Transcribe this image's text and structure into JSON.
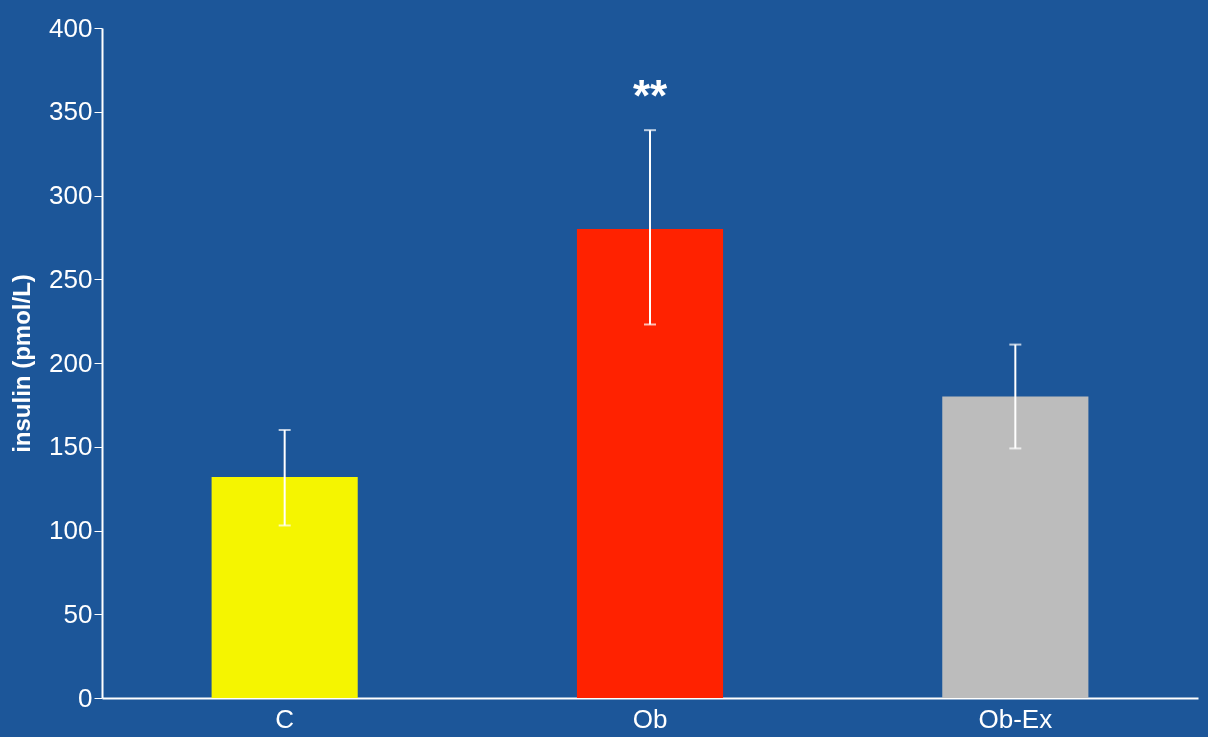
{
  "chart_data": {
    "type": "bar",
    "ylabel": "insulin (pmol/L)",
    "categories": [
      "C",
      "Ob",
      "Ob-Ex"
    ],
    "values": [
      132,
      280,
      180
    ],
    "colors": [
      "#f5f500",
      "#ff2200",
      "#bcbcbc"
    ],
    "errors": [
      [
        103,
        160
      ],
      [
        223,
        339
      ],
      [
        149,
        211
      ]
    ],
    "ylim": [
      0,
      400
    ],
    "yticks": [
      0,
      50,
      100,
      150,
      200,
      250,
      300,
      350,
      400
    ],
    "grid": false,
    "annotations": [
      {
        "text": "**",
        "x": "Ob",
        "y": 339
      }
    ]
  }
}
